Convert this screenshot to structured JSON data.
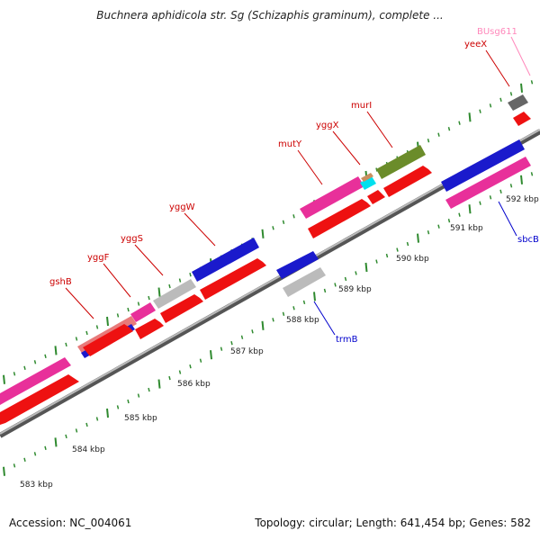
{
  "title": "Buchnera aphidicola str. Sg (Schizaphis graminum), complete ...",
  "footer": {
    "accession": "Accession: NC_004061",
    "summary": "Topology: circular; Length: 641,454 bp; Genes: 582"
  },
  "colors": {
    "backbone": "#8a8a8a",
    "ticks": "#2f8a2f",
    "gene_label": "#cc0000",
    "gene_label_pink": "#ff88bb",
    "gene_label_blue": "#0000cc"
  },
  "scale_labels": [
    "583 kbp",
    "584 kbp",
    "585 kbp",
    "586 kbp",
    "587 kbp",
    "588 kbp",
    "589 kbp",
    "590 kbp",
    "591 kbp",
    "592 kbp"
  ],
  "gene_labels": [
    {
      "text": "gshB",
      "color": "#cc0000"
    },
    {
      "text": "yggF",
      "color": "#cc0000"
    },
    {
      "text": "yggS",
      "color": "#cc0000"
    },
    {
      "text": "yggW",
      "color": "#cc0000"
    },
    {
      "text": "mutY",
      "color": "#cc0000"
    },
    {
      "text": "yggX",
      "color": "#cc0000"
    },
    {
      "text": "murI",
      "color": "#cc0000"
    },
    {
      "text": "yeeX",
      "color": "#cc0000"
    },
    {
      "text": "BUsg611",
      "color": "#ff88bb"
    },
    {
      "text": "trmB",
      "color": "#0000cc"
    },
    {
      "text": "sbcB",
      "color": "#0000cc"
    }
  ]
}
